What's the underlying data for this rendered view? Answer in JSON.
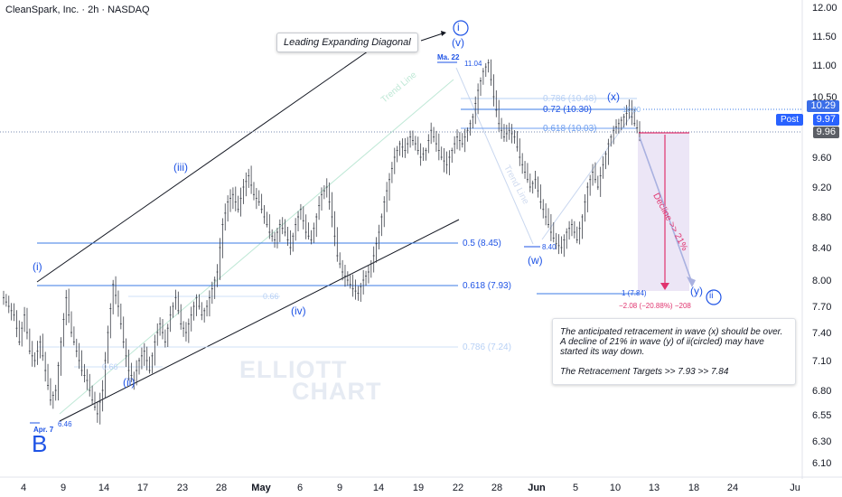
{
  "header": {
    "title": "CleanSpark, Inc. · 2h · NASDAQ"
  },
  "colors": {
    "wave_blue": "#1e53e5",
    "fib_light": "#8fb9f0",
    "decline_pink": "#e0336e",
    "decline_box": "#ece6f6",
    "candle": "#3b3f48",
    "channel": "#131722",
    "price_badge": "#3b6ee8",
    "post_badge": "#2962ff",
    "last_badge": "#5c5f66"
  },
  "annotations": {
    "leading_diagonal": "Leading Expanding Diagonal",
    "wave_labels": {
      "B": "B",
      "i": "(i)",
      "ii": "(ii)",
      "iii": "(iii)",
      "iv": "(iv)",
      "v": "(v)",
      "circ_i": "i",
      "circ_ii": "ii",
      "w": "(w)",
      "x": "(x)",
      "y": "(y)"
    },
    "price_tags": {
      "low_b": "6.46",
      "low_b_date": "Apr. 7",
      "high_v": "11.04",
      "high_v_date": "Ma. 22",
      "low_w": "8.40",
      "high_x": "10.30"
    },
    "channel_labels": {
      "trend_line": "Trend Line",
      "trend_line_2": "Trend Line"
    },
    "minor_fib": {
      "a": "0.66",
      "b": "0.66"
    },
    "decline_label": "Decline >> 21%",
    "decline_stats": "−2.08 (−20.88%) −208",
    "decline_target": "1 (7.84)"
  },
  "fib_levels": [
    {
      "label": "0.786 (10.48)",
      "value": 10.48,
      "style": "light"
    },
    {
      "label": "0.72 (10.30)",
      "value": 10.3,
      "style": "strong"
    },
    {
      "label": "0.618 (10.03)",
      "value": 10.03,
      "style": "mid"
    },
    {
      "label": "0.5 (8.45)",
      "value": 8.45,
      "style": "strong"
    },
    {
      "label": "0.618 (7.93)",
      "value": 7.93,
      "style": "strong"
    },
    {
      "label": "0.786 (7.24)",
      "value": 7.24,
      "style": "light"
    }
  ],
  "note": {
    "line1": "The anticipated retracement in wave (x) should be over.",
    "line2": "A decline of 21% in wave (y) of ii(circled) may have started its way down.",
    "line3": "The Retracement Targets  >> 7.93  >>  7.84"
  },
  "watermark": {
    "line1": "ELLIOTT",
    "line2": "CHART"
  },
  "price_badges": {
    "p1": "10.29",
    "post_label": "Post",
    "p2": "9.97",
    "p3": "9.96"
  },
  "chart_data": {
    "type": "candlestick",
    "title": "CleanSpark, Inc. · 2h · NASDAQ",
    "y_axis": {
      "ticks": [
        12.0,
        11.5,
        11.0,
        10.5,
        9.6,
        9.2,
        8.8,
        8.4,
        8.0,
        7.7,
        7.4,
        7.1,
        6.8,
        6.55,
        6.3,
        6.1
      ],
      "tick_labels": [
        "12.00",
        "11.50",
        "11.00",
        "10.50",
        "9.60",
        "9.20",
        "8.80",
        "8.40",
        "8.00",
        "7.70",
        "7.40",
        "7.10",
        "6.80",
        "6.55",
        "6.30",
        "6.10"
      ],
      "scale": "log",
      "range": [
        6.0,
        12.1
      ]
    },
    "x_axis": {
      "tick_labels": [
        "4",
        "9",
        "14",
        "17",
        "23",
        "28",
        "May",
        "6",
        "9",
        "14",
        "19",
        "22",
        "28",
        "Jun",
        "5",
        "10",
        "13",
        "18",
        "24",
        "Ju"
      ]
    },
    "key_points": [
      {
        "label": "B",
        "date": "Apr. 7",
        "price": 6.46
      },
      {
        "label": "(i)",
        "price": 7.95
      },
      {
        "label": "(ii)",
        "price": 6.9
      },
      {
        "label": "(iii)",
        "price": 9.35
      },
      {
        "label": "(iv)",
        "price": 7.8
      },
      {
        "label": "(v)",
        "date": "Ma. 22",
        "price": 11.04
      },
      {
        "label": "(w)",
        "price": 8.4
      },
      {
        "label": "(x)",
        "price": 10.3
      },
      {
        "label": "(y)",
        "price": 7.84
      }
    ],
    "path": [
      [
        0,
        7.8
      ],
      [
        4,
        7.6
      ],
      [
        6,
        7.3
      ],
      [
        8,
        7.6
      ],
      [
        10,
        7.2
      ],
      [
        12,
        7.1
      ],
      [
        14,
        7.3
      ],
      [
        16,
        7.0
      ],
      [
        18,
        6.7
      ],
      [
        20,
        6.8
      ],
      [
        22,
        7.3
      ],
      [
        24,
        7.8
      ],
      [
        26,
        7.4
      ],
      [
        28,
        7.2
      ],
      [
        30,
        7.0
      ],
      [
        32,
        6.9
      ],
      [
        34,
        6.7
      ],
      [
        36,
        6.56
      ],
      [
        38,
        6.8
      ],
      [
        40,
        7.4
      ],
      [
        42,
        7.95
      ],
      [
        44,
        7.7
      ],
      [
        46,
        7.3
      ],
      [
        48,
        7.0
      ],
      [
        50,
        6.9
      ],
      [
        52,
        7.1
      ],
      [
        54,
        7.2
      ],
      [
        56,
        7.0
      ],
      [
        58,
        7.3
      ],
      [
        60,
        7.5
      ],
      [
        62,
        7.3
      ],
      [
        64,
        7.6
      ],
      [
        66,
        7.8
      ],
      [
        68,
        7.5
      ],
      [
        70,
        7.4
      ],
      [
        72,
        7.6
      ],
      [
        74,
        7.8
      ],
      [
        76,
        7.6
      ],
      [
        78,
        7.7
      ],
      [
        80,
        7.9
      ],
      [
        82,
        8.1
      ],
      [
        84,
        8.7
      ],
      [
        86,
        9.0
      ],
      [
        88,
        9.1
      ],
      [
        90,
        8.9
      ],
      [
        92,
        9.2
      ],
      [
        94,
        9.35
      ],
      [
        96,
        9.1
      ],
      [
        98,
        9.0
      ],
      [
        100,
        8.8
      ],
      [
        102,
        8.6
      ],
      [
        104,
        8.5
      ],
      [
        106,
        8.7
      ],
      [
        108,
        8.6
      ],
      [
        110,
        8.4
      ],
      [
        112,
        8.7
      ],
      [
        114,
        8.9
      ],
      [
        116,
        8.6
      ],
      [
        118,
        8.5
      ],
      [
        120,
        8.8
      ],
      [
        122,
        9.1
      ],
      [
        124,
        9.2
      ],
      [
        126,
        8.8
      ],
      [
        128,
        8.3
      ],
      [
        130,
        8.1
      ],
      [
        132,
        8.0
      ],
      [
        134,
        7.9
      ],
      [
        136,
        7.85
      ],
      [
        138,
        8.0
      ],
      [
        140,
        8.1
      ],
      [
        142,
        8.3
      ],
      [
        144,
        8.6
      ],
      [
        146,
        9.0
      ],
      [
        148,
        9.3
      ],
      [
        150,
        9.6
      ],
      [
        152,
        9.8
      ],
      [
        154,
        9.7
      ],
      [
        156,
        9.9
      ],
      [
        158,
        9.8
      ],
      [
        160,
        9.6
      ],
      [
        162,
        9.7
      ],
      [
        164,
        10.0
      ],
      [
        166,
        9.8
      ],
      [
        168,
        9.6
      ],
      [
        170,
        9.5
      ],
      [
        172,
        9.7
      ],
      [
        174,
        9.9
      ],
      [
        176,
        9.8
      ],
      [
        178,
        10.0
      ],
      [
        180,
        10.2
      ],
      [
        182,
        10.6
      ],
      [
        184,
        10.9
      ],
      [
        186,
        11.04
      ],
      [
        188,
        10.5
      ],
      [
        190,
        10.1
      ],
      [
        192,
        9.9
      ],
      [
        194,
        10.0
      ],
      [
        196,
        9.9
      ],
      [
        198,
        9.6
      ],
      [
        200,
        9.4
      ],
      [
        202,
        9.2
      ],
      [
        204,
        9.3
      ],
      [
        206,
        9.0
      ],
      [
        208,
        8.8
      ],
      [
        210,
        8.6
      ],
      [
        212,
        8.45
      ],
      [
        214,
        8.4
      ],
      [
        216,
        8.6
      ],
      [
        218,
        8.7
      ],
      [
        220,
        8.5
      ],
      [
        222,
        8.8
      ],
      [
        224,
        9.2
      ],
      [
        226,
        9.4
      ],
      [
        228,
        9.2
      ],
      [
        230,
        9.5
      ],
      [
        232,
        9.8
      ],
      [
        234,
        10.0
      ],
      [
        236,
        10.1
      ],
      [
        238,
        10.2
      ],
      [
        240,
        10.3
      ],
      [
        242,
        10.1
      ],
      [
        244,
        9.97
      ]
    ]
  }
}
